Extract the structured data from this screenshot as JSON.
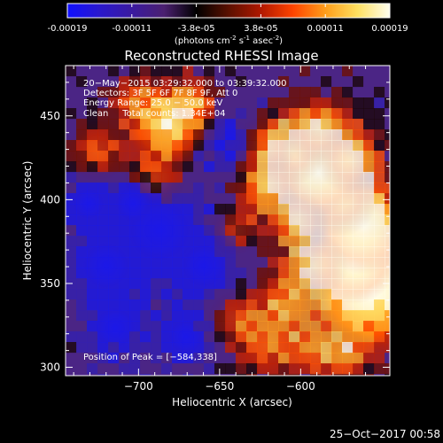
{
  "colorbar": {
    "tick_labels": [
      "-0.00019",
      "-0.00011",
      "-3.8e-05",
      "3.8e-05",
      "0.00011",
      "0.00019"
    ],
    "unit_text": "(photons cm",
    "unit_exp1": "-2",
    "unit_mid": " s",
    "unit_exp2": "-1",
    "unit_mid2": " asec",
    "unit_exp3": "-2",
    "unit_end": ")",
    "gradient": [
      "#1010ff",
      "#2a18cc",
      "#3a1aa0",
      "#4b2070",
      "#000000",
      "#5a1000",
      "#b01800",
      "#ff4400",
      "#ff9d1a",
      "#ffe060",
      "#fffff0"
    ]
  },
  "image": {
    "title": "Reconstructed RHESSI Image",
    "x_label": "Heliocentric X (arcsec)",
    "y_label": "Heliocentric Y (arcsec)",
    "x_ticks": [
      {
        "value": -700,
        "label": "−700"
      },
      {
        "value": -650,
        "label": "−650"
      },
      {
        "value": -600,
        "label": "−600"
      }
    ],
    "y_ticks": [
      {
        "value": 450,
        "label": "450"
      },
      {
        "value": 400,
        "label": "400"
      },
      {
        "value": 350,
        "label": "350"
      },
      {
        "value": 300,
        "label": "300"
      }
    ],
    "x_range": [
      -745,
      -545
    ],
    "y_range": [
      295,
      480
    ],
    "info_lines": [
      "20−May−2015 03:29:32.000 to 03:39:32.000",
      "Detectors: 3F 5F 6F 7F 8F 9F, Att 0",
      "Energy Range: 25.0 − 50.0 keV",
      "Clean     Total counts: 1.34E+04"
    ],
    "peak_label": "Position of Peak = [−584,338]"
  },
  "footer": {
    "timestamp": "25−Oct−2017 00:58"
  }
}
